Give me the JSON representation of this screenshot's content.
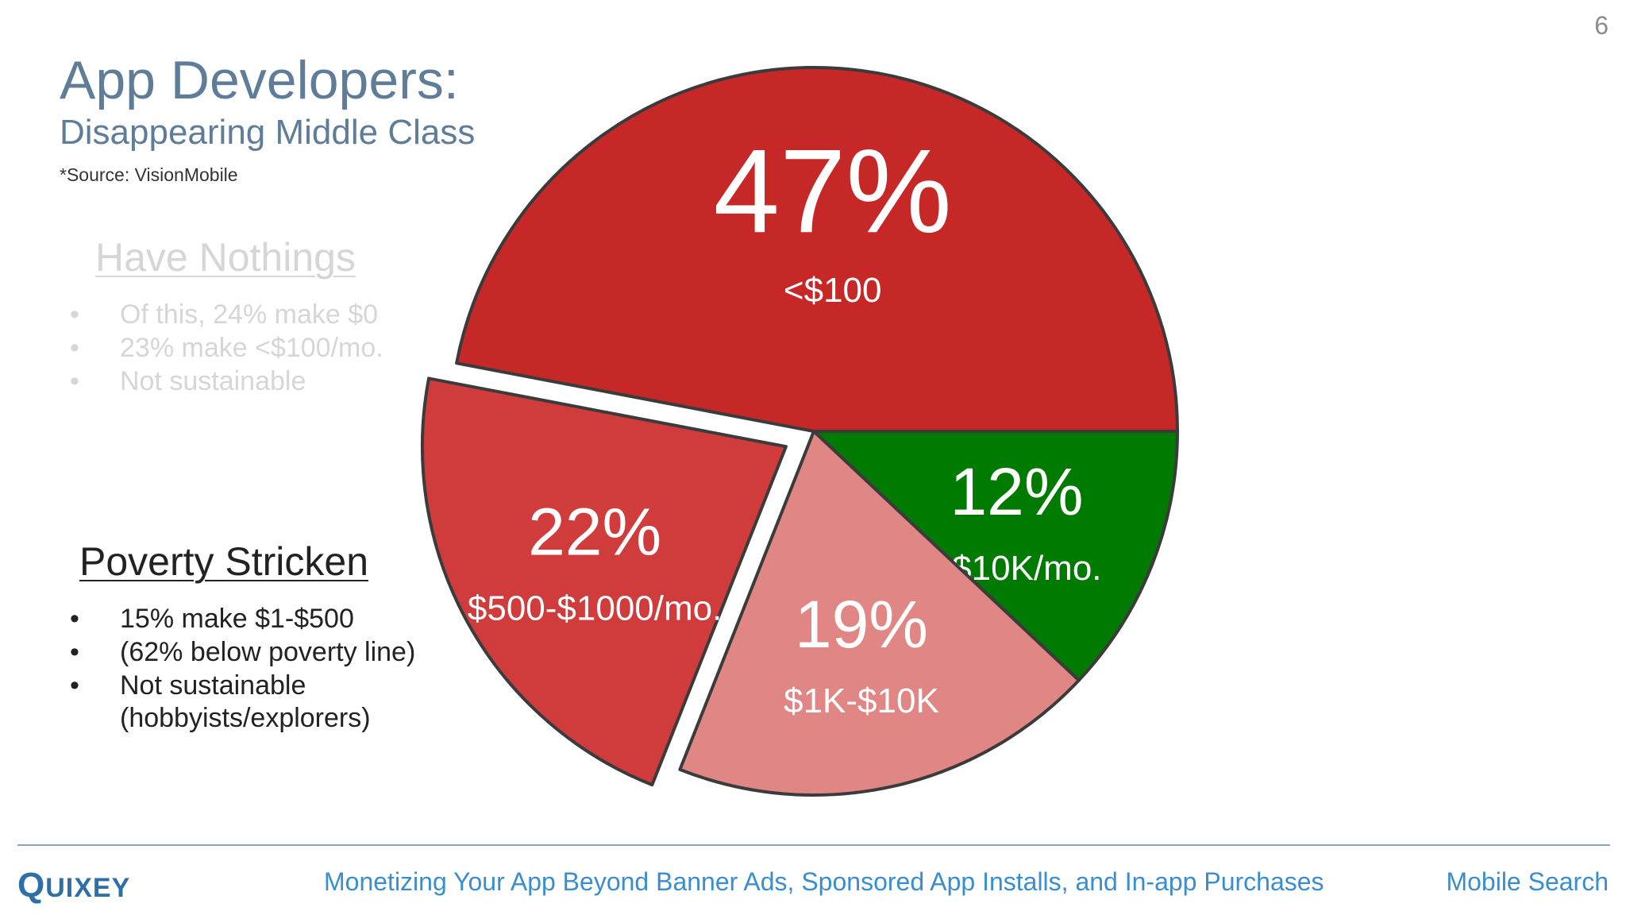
{
  "page_number": "6",
  "title": "App Developers:",
  "subtitle": "Disappearing Middle Class",
  "source": "*Source: VisionMobile",
  "have_nothings": {
    "heading": "Have Nothings",
    "bullets": [
      "Of this, 24% make $0",
      "23% make <$100/mo.",
      "Not sustainable"
    ],
    "color": "#d6d6d6"
  },
  "poverty_stricken": {
    "heading": "Poverty Stricken",
    "bullets": [
      "15% make $1-$500",
      "(62% below poverty line)",
      "Not sustainable",
      "(hobbyists/explorers)"
    ],
    "color": "#222222"
  },
  "bullet_char": "•",
  "chart_data": {
    "type": "pie",
    "slices": [
      {
        "percent_label": "12%",
        "category_label": ">$10K/mo.",
        "value": 12,
        "color": "#007a00",
        "exploded": false
      },
      {
        "percent_label": "19%",
        "category_label": "$1K-$10K",
        "value": 19,
        "color": "#e08785",
        "exploded": false
      },
      {
        "percent_label": "22%",
        "category_label": "$500-$1000/mo.",
        "value": 22,
        "color": "#d03c3c",
        "exploded": true
      },
      {
        "percent_label": "47%",
        "category_label": "<$100",
        "value": 47,
        "color": "#c62727",
        "exploded": false
      }
    ],
    "stroke_color": "#3b3b3b"
  },
  "footer": {
    "logo_first": "Q",
    "logo_rest": "UIXEY",
    "center_text": "Monetizing Your App Beyond Banner Ads, Sponsored App Installs, and In-app Purchases",
    "right_text": "Mobile Search",
    "accent": "#3a8ecf"
  }
}
